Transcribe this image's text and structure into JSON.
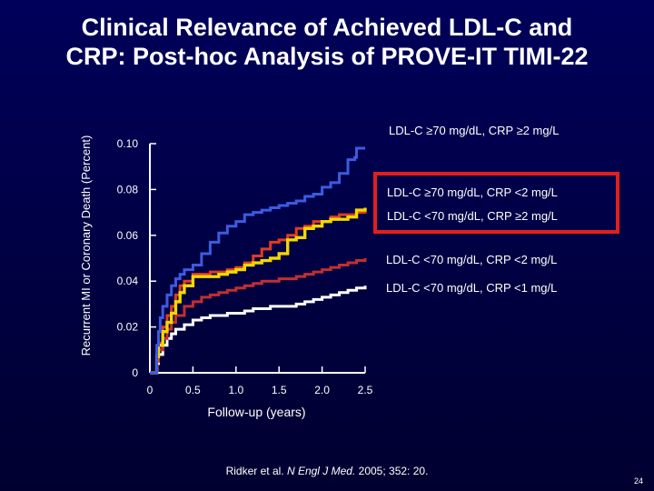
{
  "title_line1": "Clinical Relevance of Achieved LDL-C and",
  "title_line2": "CRP: Post-hoc Analysis of PROVE-IT TIMI-22",
  "ylabel": "Recurrent MI or Coronary Death (Percent)",
  "xlabel": "Follow-up (years)",
  "source": {
    "pre": "Ridker et al. ",
    "journal": "N Engl J Med.",
    "post": " 2005; 352: 20."
  },
  "page_number": "24",
  "chart_data": {
    "type": "line",
    "xlabel": "Follow-up (years)",
    "ylabel": "Recurrent MI or Coronary Death (Percent)",
    "xlim": [
      0,
      2.5
    ],
    "ylim": [
      0,
      0.1
    ],
    "x_ticks": [
      0,
      0.5,
      1.0,
      1.5,
      2.0,
      2.5
    ],
    "x_tick_labels": [
      "0",
      "0.5",
      "1.0",
      "1.5",
      "2.0",
      "2.5"
    ],
    "y_ticks": [
      0,
      0.02,
      0.04,
      0.06,
      0.08,
      0.1
    ],
    "y_tick_labels": [
      "0",
      "0.02",
      "0.04",
      "0.06",
      "0.08",
      "0.10"
    ],
    "grid": false,
    "legend_placement": "right",
    "highlight_box": {
      "labels": [
        "LDL-C ≥70 mg/dL, CRP <2 mg/L",
        "LDL-C <70 mg/dL, CRP ≥2 mg/L"
      ],
      "color": "#e0201c"
    },
    "series": [
      {
        "name": "LDL-C ≥70 mg/dL, CRP ≥2 mg/L",
        "color": "#3d5be0",
        "x": [
          0,
          0.05,
          0.08,
          0.1,
          0.12,
          0.15,
          0.2,
          0.25,
          0.3,
          0.35,
          0.4,
          0.5,
          0.6,
          0.7,
          0.8,
          0.9,
          1.0,
          1.1,
          1.2,
          1.3,
          1.4,
          1.5,
          1.6,
          1.7,
          1.8,
          1.9,
          2.0,
          2.1,
          2.2,
          2.3,
          2.38,
          2.4,
          2.5
        ],
        "y": [
          0,
          0,
          0.012,
          0.018,
          0.024,
          0.029,
          0.034,
          0.038,
          0.041,
          0.043,
          0.045,
          0.047,
          0.052,
          0.057,
          0.061,
          0.064,
          0.066,
          0.069,
          0.07,
          0.071,
          0.072,
          0.073,
          0.074,
          0.075,
          0.077,
          0.078,
          0.081,
          0.083,
          0.087,
          0.093,
          0.094,
          0.098,
          0.098
        ]
      },
      {
        "name": "LDL-C ≥70 mg/dL, CRP <2 mg/L",
        "color": "#f2d800",
        "x": [
          0,
          0.05,
          0.08,
          0.1,
          0.15,
          0.2,
          0.25,
          0.3,
          0.35,
          0.4,
          0.5,
          0.6,
          0.7,
          0.8,
          0.9,
          1.0,
          1.1,
          1.2,
          1.3,
          1.4,
          1.5,
          1.6,
          1.7,
          1.8,
          1.9,
          2.0,
          2.1,
          2.2,
          2.3,
          2.4,
          2.5
        ],
        "y": [
          0,
          0,
          0.007,
          0.012,
          0.018,
          0.022,
          0.026,
          0.031,
          0.035,
          0.038,
          0.042,
          0.042,
          0.042,
          0.043,
          0.044,
          0.045,
          0.047,
          0.048,
          0.049,
          0.05,
          0.052,
          0.058,
          0.059,
          0.063,
          0.064,
          0.066,
          0.067,
          0.067,
          0.068,
          0.071,
          0.072
        ]
      },
      {
        "name": "LDL-C <70 mg/dL, CRP ≥2 mg/L",
        "color": "#e03c20",
        "x": [
          0,
          0.05,
          0.08,
          0.1,
          0.15,
          0.2,
          0.25,
          0.3,
          0.35,
          0.4,
          0.5,
          0.6,
          0.7,
          0.8,
          0.9,
          1.0,
          1.1,
          1.2,
          1.3,
          1.4,
          1.5,
          1.6,
          1.7,
          1.8,
          1.9,
          2.0,
          2.1,
          2.2,
          2.3,
          2.4,
          2.5
        ],
        "y": [
          0,
          0,
          0.008,
          0.013,
          0.02,
          0.025,
          0.029,
          0.034,
          0.038,
          0.04,
          0.043,
          0.043,
          0.044,
          0.044,
          0.045,
          0.046,
          0.048,
          0.051,
          0.054,
          0.057,
          0.058,
          0.06,
          0.063,
          0.064,
          0.066,
          0.066,
          0.068,
          0.069,
          0.069,
          0.07,
          0.071
        ]
      },
      {
        "name": "LDL-C <70 mg/dL, CRP <2 mg/L",
        "color": "#c03030",
        "x": [
          0,
          0.05,
          0.08,
          0.1,
          0.15,
          0.2,
          0.25,
          0.3,
          0.4,
          0.5,
          0.6,
          0.7,
          0.8,
          0.9,
          1.0,
          1.1,
          1.2,
          1.3,
          1.4,
          1.5,
          1.6,
          1.7,
          1.8,
          1.9,
          2.0,
          2.1,
          2.2,
          2.3,
          2.4,
          2.5
        ],
        "y": [
          0,
          0,
          0.005,
          0.01,
          0.015,
          0.019,
          0.022,
          0.025,
          0.029,
          0.031,
          0.033,
          0.034,
          0.035,
          0.036,
          0.037,
          0.038,
          0.039,
          0.04,
          0.04,
          0.041,
          0.041,
          0.042,
          0.043,
          0.044,
          0.045,
          0.046,
          0.047,
          0.048,
          0.049,
          0.05
        ]
      },
      {
        "name": "LDL-C <70 mg/dL, CRP <1 mg/L",
        "color": "#ffffff",
        "x": [
          0,
          0.05,
          0.08,
          0.1,
          0.15,
          0.2,
          0.25,
          0.3,
          0.4,
          0.5,
          0.6,
          0.7,
          0.8,
          0.9,
          1.0,
          1.1,
          1.2,
          1.3,
          1.4,
          1.5,
          1.6,
          1.7,
          1.8,
          1.9,
          2.0,
          2.1,
          2.2,
          2.3,
          2.4,
          2.5
        ],
        "y": [
          0,
          0,
          0.004,
          0.008,
          0.012,
          0.015,
          0.017,
          0.019,
          0.021,
          0.023,
          0.024,
          0.025,
          0.025,
          0.026,
          0.026,
          0.027,
          0.028,
          0.028,
          0.029,
          0.029,
          0.029,
          0.03,
          0.031,
          0.032,
          0.033,
          0.034,
          0.035,
          0.036,
          0.037,
          0.038
        ]
      }
    ]
  }
}
